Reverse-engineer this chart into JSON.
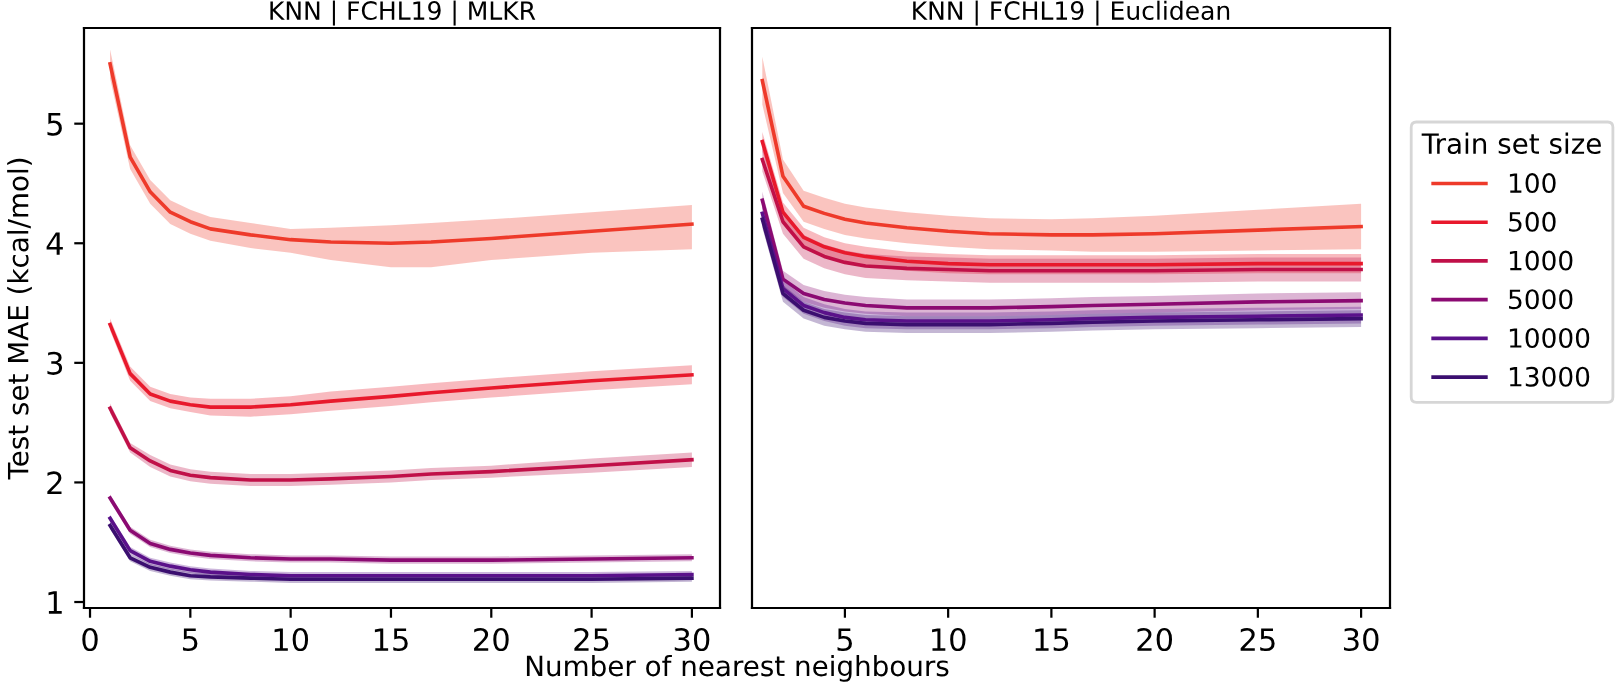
{
  "chart_data": [
    {
      "type": "line",
      "title": "KNN | FCHL19 | MLKR",
      "xlabel": "Number of nearest neighbours",
      "ylabel": "Test set MAE (kcal/mol)",
      "x": [
        1,
        2,
        3,
        4,
        5,
        6,
        8,
        10,
        12,
        15,
        17,
        20,
        25,
        30
      ],
      "xlim": [
        -0.3,
        31.4
      ],
      "xticks": [
        0,
        5,
        10,
        15,
        20,
        25,
        30
      ],
      "ylim": [
        0.95,
        5.8
      ],
      "yticks": [
        1,
        2,
        3,
        4,
        5
      ],
      "grid": false,
      "legend": "right",
      "legend_title": "Train set size",
      "series": [
        {
          "name": "100",
          "color": "#ee3a2a",
          "values": [
            5.5,
            4.72,
            4.43,
            4.26,
            4.18,
            4.12,
            4.07,
            4.03,
            4.01,
            4.0,
            4.01,
            4.04,
            4.1,
            4.16
          ],
          "lower": [
            5.38,
            4.62,
            4.33,
            4.16,
            4.08,
            4.02,
            3.96,
            3.92,
            3.86,
            3.8,
            3.8,
            3.86,
            3.92,
            3.95
          ],
          "upper": [
            5.62,
            4.82,
            4.53,
            4.36,
            4.28,
            4.22,
            4.17,
            4.12,
            4.13,
            4.15,
            4.17,
            4.2,
            4.26,
            4.32
          ]
        },
        {
          "name": "500",
          "color": "#e8192c",
          "values": [
            3.32,
            2.91,
            2.74,
            2.68,
            2.65,
            2.63,
            2.63,
            2.65,
            2.68,
            2.72,
            2.75,
            2.79,
            2.85,
            2.9
          ],
          "lower": [
            3.27,
            2.85,
            2.68,
            2.62,
            2.59,
            2.56,
            2.55,
            2.57,
            2.6,
            2.64,
            2.67,
            2.71,
            2.77,
            2.82
          ],
          "upper": [
            3.37,
            2.97,
            2.8,
            2.74,
            2.71,
            2.7,
            2.7,
            2.72,
            2.76,
            2.8,
            2.83,
            2.87,
            2.93,
            2.98
          ]
        },
        {
          "name": "1000",
          "color": "#c01048",
          "values": [
            2.62,
            2.29,
            2.18,
            2.1,
            2.06,
            2.04,
            2.02,
            2.02,
            2.03,
            2.05,
            2.07,
            2.09,
            2.14,
            2.19
          ],
          "lower": [
            2.58,
            2.25,
            2.13,
            2.05,
            2.01,
            1.99,
            1.97,
            1.97,
            1.98,
            2.0,
            2.02,
            2.04,
            2.08,
            2.13
          ],
          "upper": [
            2.66,
            2.33,
            2.23,
            2.15,
            2.11,
            2.09,
            2.07,
            2.07,
            2.08,
            2.1,
            2.12,
            2.14,
            2.2,
            2.25
          ]
        },
        {
          "name": "5000",
          "color": "#8b0a72",
          "values": [
            1.87,
            1.6,
            1.49,
            1.44,
            1.41,
            1.39,
            1.37,
            1.36,
            1.36,
            1.35,
            1.35,
            1.35,
            1.36,
            1.37
          ],
          "lower": [
            1.84,
            1.57,
            1.46,
            1.41,
            1.38,
            1.36,
            1.34,
            1.33,
            1.33,
            1.32,
            1.32,
            1.32,
            1.33,
            1.34
          ],
          "upper": [
            1.9,
            1.63,
            1.52,
            1.47,
            1.44,
            1.42,
            1.4,
            1.39,
            1.39,
            1.38,
            1.38,
            1.38,
            1.39,
            1.4
          ]
        },
        {
          "name": "10000",
          "color": "#5a118a",
          "values": [
            1.7,
            1.43,
            1.34,
            1.3,
            1.27,
            1.25,
            1.23,
            1.22,
            1.22,
            1.22,
            1.22,
            1.22,
            1.22,
            1.23
          ],
          "lower": [
            1.67,
            1.4,
            1.31,
            1.27,
            1.24,
            1.22,
            1.2,
            1.19,
            1.19,
            1.19,
            1.19,
            1.19,
            1.19,
            1.2
          ],
          "upper": [
            1.73,
            1.46,
            1.37,
            1.33,
            1.3,
            1.28,
            1.26,
            1.25,
            1.25,
            1.25,
            1.25,
            1.25,
            1.25,
            1.26
          ]
        },
        {
          "name": "13000",
          "color": "#3b0f70",
          "values": [
            1.64,
            1.37,
            1.29,
            1.25,
            1.22,
            1.21,
            1.2,
            1.19,
            1.19,
            1.19,
            1.19,
            1.19,
            1.19,
            1.2
          ],
          "lower": [
            1.61,
            1.34,
            1.26,
            1.22,
            1.19,
            1.18,
            1.17,
            1.16,
            1.16,
            1.16,
            1.16,
            1.16,
            1.16,
            1.17
          ],
          "upper": [
            1.67,
            1.4,
            1.32,
            1.28,
            1.25,
            1.24,
            1.23,
            1.22,
            1.22,
            1.22,
            1.22,
            1.22,
            1.22,
            1.23
          ]
        }
      ]
    },
    {
      "type": "line",
      "title": "KNN | FCHL19 | Euclidean",
      "x": [
        1,
        2,
        3,
        4,
        5,
        6,
        8,
        10,
        12,
        15,
        17,
        20,
        25,
        30
      ],
      "xlim": [
        0.5,
        31.4
      ],
      "xticks": [
        5,
        10,
        15,
        20,
        25,
        30
      ],
      "ylim": [
        0.95,
        5.8
      ],
      "yticks": [
        1,
        2,
        3,
        4,
        5
      ],
      "tick_labels": "x",
      "grid": false,
      "legend": false,
      "series": [
        {
          "name": "100",
          "color": "#ee3a2a",
          "values": [
            5.36,
            4.56,
            4.31,
            4.25,
            4.2,
            4.17,
            4.13,
            4.1,
            4.08,
            4.07,
            4.07,
            4.08,
            4.11,
            4.14
          ],
          "lower": [
            5.16,
            4.42,
            4.18,
            4.12,
            4.07,
            4.04,
            4.0,
            3.97,
            3.95,
            3.94,
            3.93,
            3.93,
            3.94,
            3.95
          ],
          "upper": [
            5.56,
            4.7,
            4.44,
            4.38,
            4.33,
            4.3,
            4.26,
            4.23,
            4.21,
            4.2,
            4.21,
            4.23,
            4.28,
            4.33
          ]
        },
        {
          "name": "500",
          "color": "#e8192c",
          "values": [
            4.85,
            4.26,
            4.05,
            3.97,
            3.92,
            3.89,
            3.85,
            3.83,
            3.82,
            3.82,
            3.82,
            3.82,
            3.83,
            3.83
          ],
          "lower": [
            4.77,
            4.18,
            3.97,
            3.89,
            3.84,
            3.81,
            3.77,
            3.75,
            3.74,
            3.74,
            3.74,
            3.74,
            3.75,
            3.75
          ],
          "upper": [
            4.93,
            4.34,
            4.13,
            4.05,
            4.0,
            3.97,
            3.93,
            3.91,
            3.9,
            3.9,
            3.9,
            3.9,
            3.91,
            3.91
          ]
        },
        {
          "name": "1000",
          "color": "#c01048",
          "values": [
            4.7,
            4.18,
            3.97,
            3.89,
            3.84,
            3.81,
            3.79,
            3.78,
            3.77,
            3.77,
            3.77,
            3.77,
            3.78,
            3.78
          ],
          "lower": [
            4.6,
            4.08,
            3.87,
            3.79,
            3.74,
            3.71,
            3.69,
            3.68,
            3.67,
            3.67,
            3.67,
            3.67,
            3.68,
            3.68
          ],
          "upper": [
            4.8,
            4.28,
            4.07,
            3.99,
            3.94,
            3.91,
            3.89,
            3.88,
            3.87,
            3.87,
            3.87,
            3.87,
            3.88,
            3.88
          ]
        },
        {
          "name": "5000",
          "color": "#8b0a72",
          "values": [
            4.36,
            3.7,
            3.58,
            3.53,
            3.5,
            3.48,
            3.46,
            3.46,
            3.46,
            3.47,
            3.48,
            3.49,
            3.51,
            3.52
          ],
          "lower": [
            4.29,
            3.63,
            3.51,
            3.46,
            3.43,
            3.41,
            3.39,
            3.39,
            3.39,
            3.4,
            3.41,
            3.42,
            3.44,
            3.45
          ],
          "upper": [
            4.43,
            3.77,
            3.65,
            3.6,
            3.57,
            3.55,
            3.53,
            3.53,
            3.53,
            3.54,
            3.55,
            3.56,
            3.58,
            3.59
          ]
        },
        {
          "name": "10000",
          "color": "#5a118a",
          "values": [
            4.25,
            3.62,
            3.48,
            3.42,
            3.38,
            3.36,
            3.35,
            3.35,
            3.35,
            3.36,
            3.37,
            3.38,
            3.39,
            3.4
          ],
          "lower": [
            4.18,
            3.55,
            3.41,
            3.35,
            3.31,
            3.29,
            3.28,
            3.28,
            3.28,
            3.29,
            3.3,
            3.31,
            3.32,
            3.33
          ],
          "upper": [
            4.32,
            3.69,
            3.55,
            3.49,
            3.45,
            3.43,
            3.42,
            3.42,
            3.42,
            3.43,
            3.44,
            3.45,
            3.46,
            3.47
          ]
        },
        {
          "name": "13000",
          "color": "#3b0f70",
          "values": [
            4.2,
            3.58,
            3.44,
            3.38,
            3.35,
            3.33,
            3.32,
            3.32,
            3.32,
            3.33,
            3.34,
            3.35,
            3.36,
            3.37
          ],
          "lower": [
            4.13,
            3.51,
            3.37,
            3.31,
            3.28,
            3.26,
            3.25,
            3.25,
            3.25,
            3.26,
            3.27,
            3.28,
            3.29,
            3.3
          ],
          "upper": [
            4.27,
            3.65,
            3.51,
            3.45,
            3.42,
            3.4,
            3.39,
            3.39,
            3.39,
            3.4,
            3.41,
            3.42,
            3.43,
            3.44
          ]
        }
      ]
    }
  ]
}
